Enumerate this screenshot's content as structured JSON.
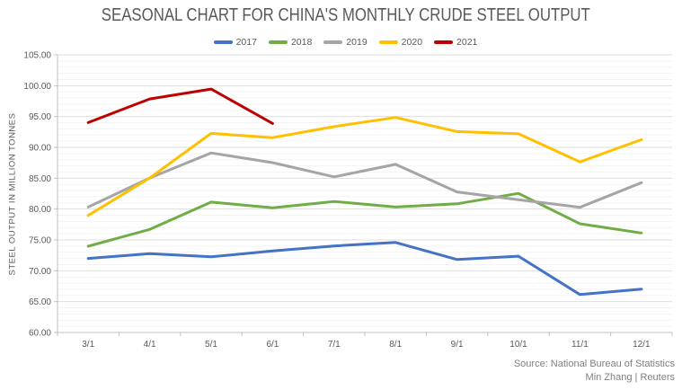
{
  "chart_data": {
    "type": "line",
    "title": "SEASONAL CHART FOR CHINA'S MONTHLY CRUDE STEEL OUTPUT",
    "xlabel": "",
    "ylabel": "STEEL OUTPUT IN MILLION TONNES",
    "ylim": [
      60,
      105
    ],
    "y_major_step": 5,
    "y_minor_step": 1,
    "y_tick_decimals": 2,
    "grid": true,
    "legend_position": "top",
    "categories": [
      "3/1",
      "4/1",
      "5/1",
      "6/1",
      "7/1",
      "8/1",
      "9/1",
      "10/1",
      "11/1",
      "12/1"
    ],
    "series": [
      {
        "name": "2017",
        "color": "#4472C4",
        "values": [
          72.0,
          72.78,
          72.26,
          73.23,
          74.02,
          74.59,
          71.83,
          72.36,
          66.15,
          67.02
        ]
      },
      {
        "name": "2018",
        "color": "#70AD47",
        "values": [
          73.98,
          76.7,
          81.13,
          80.2,
          81.24,
          80.33,
          80.85,
          82.55,
          77.62,
          76.12
        ]
      },
      {
        "name": "2019",
        "color": "#A5A5A5",
        "values": [
          80.33,
          85.03,
          89.09,
          87.53,
          85.22,
          87.25,
          82.77,
          81.52,
          80.29,
          84.27
        ]
      },
      {
        "name": "2020",
        "color": "#FFC000",
        "values": [
          78.98,
          85.03,
          92.27,
          91.58,
          93.36,
          94.85,
          92.56,
          92.2,
          87.66,
          91.25
        ]
      },
      {
        "name": "2021",
        "color": "#C00000",
        "values": [
          94.02,
          97.85,
          99.45,
          93.88,
          null,
          null,
          null,
          null,
          null,
          null
        ]
      }
    ]
  },
  "source": {
    "line1": "Source: National Bureau of Statistics",
    "line2": "Min Zhang | Reuters"
  },
  "colors": {
    "title_text": "#595959",
    "tick_text": "#595959",
    "source_text": "#7f7f7f",
    "minor_gridline": "#f3f3f3",
    "major_gridline": "#dedede",
    "axis_line": "#c0c0c0"
  }
}
